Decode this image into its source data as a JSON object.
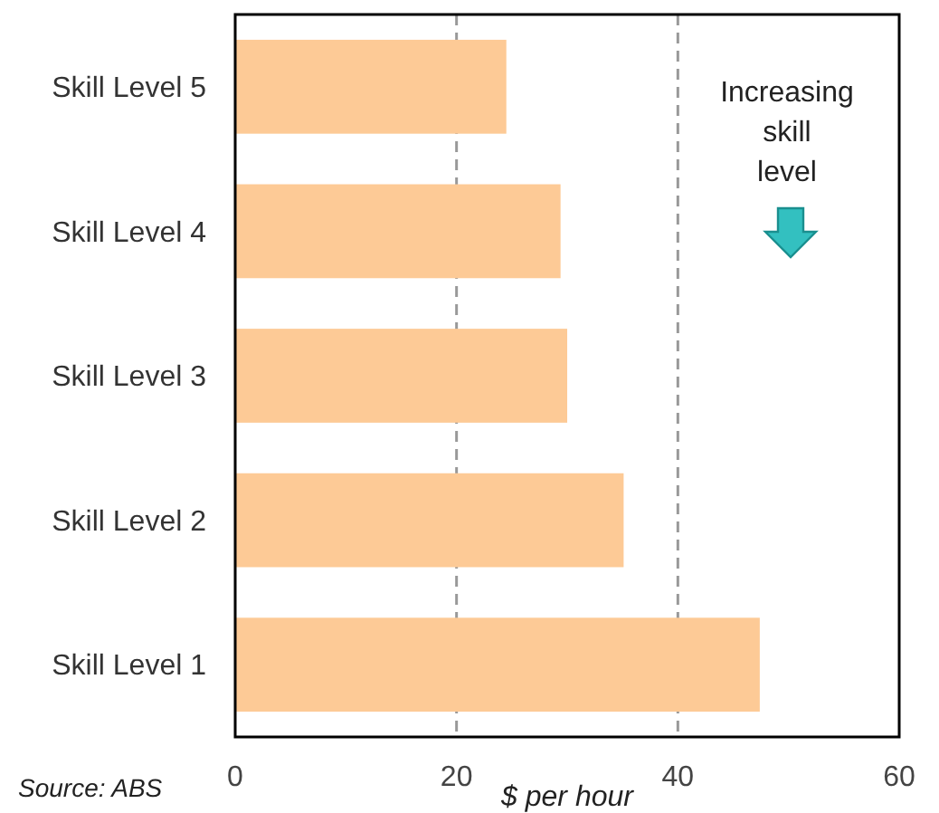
{
  "chart_data": {
    "type": "bar",
    "orientation": "horizontal",
    "categories": [
      "Skill Level 5",
      "Skill Level 4",
      "Skill Level 3",
      "Skill Level 2",
      "Skill Level 1"
    ],
    "values": [
      24.5,
      29.4,
      30,
      35.1,
      47.4
    ],
    "color": "#fdca96",
    "xlim": [
      0,
      60
    ],
    "xticks": [
      0,
      20,
      40,
      60
    ],
    "grid": "x",
    "xlabel": "$ per hour",
    "annotations": [
      "Increasing skill level",
      "Source: ABS"
    ]
  }
}
